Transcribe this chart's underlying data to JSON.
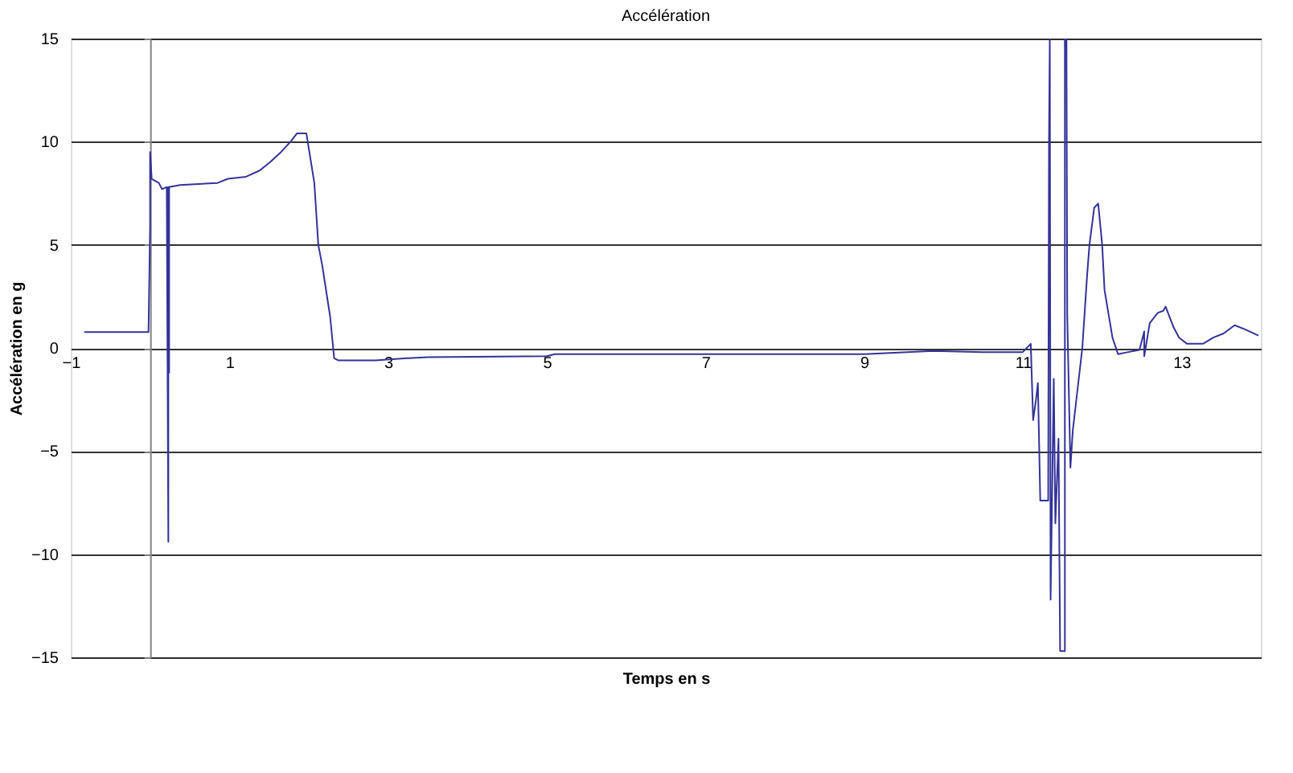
{
  "chart_data": {
    "type": "line",
    "title": "Accélération",
    "xlabel": "Temps en s",
    "ylabel": "Accélération en g",
    "xlim": [
      -1,
      14
    ],
    "xticks": [
      -1,
      1,
      3,
      5,
      7,
      9,
      11,
      13
    ],
    "ylim": [
      -15,
      15
    ],
    "yticks": [
      -15,
      -10,
      -5,
      0,
      5,
      10,
      15
    ],
    "grid": "y",
    "legend": false,
    "marker": "none",
    "line_style": "solid",
    "series": [
      {
        "color": "#333399",
        "x": [
          -0.83,
          -0.02,
          0.0,
          0.0,
          0.02,
          0.11,
          0.15,
          0.21,
          0.23,
          0.23,
          0.24,
          0.24,
          0.38,
          0.85,
          0.98,
          1.21,
          1.38,
          1.51,
          1.65,
          1.77,
          1.85,
          1.97,
          2.07,
          2.12,
          2.17,
          2.27,
          2.32,
          2.37,
          2.84,
          3.24,
          3.5,
          5.0,
          5.1,
          7.0,
          9.0,
          9.87,
          10.5,
          11.0,
          11.1,
          11.13,
          11.17,
          11.19,
          11.22,
          11.32,
          11.33,
          11.34,
          11.35,
          11.39,
          11.41,
          11.45,
          11.47,
          11.53,
          11.53,
          11.55,
          11.56,
          11.6,
          11.63,
          11.75,
          11.81,
          11.84,
          11.9,
          11.95,
          12.0,
          12.03,
          12.13,
          12.2,
          12.33,
          12.47,
          12.53,
          12.53,
          12.6,
          12.7,
          12.77,
          12.8,
          12.9,
          12.97,
          13.07,
          13.27,
          13.4,
          13.53,
          13.67,
          13.8,
          13.97
        ],
        "values": [
          0.77,
          0.77,
          5.9,
          9.5,
          8.2,
          8.0,
          7.7,
          7.8,
          -9.4,
          7.8,
          -1.2,
          7.8,
          7.9,
          8.0,
          8.2,
          8.3,
          8.6,
          9.0,
          9.5,
          10.0,
          10.4,
          10.4,
          8.0,
          5.0,
          4.0,
          1.5,
          -0.5,
          -0.6,
          -0.6,
          -0.5,
          -0.45,
          -0.4,
          -0.3,
          -0.3,
          -0.3,
          -0.15,
          -0.2,
          -0.2,
          0.2,
          -3.5,
          -2.4,
          -1.7,
          -7.4,
          -7.4,
          10,
          15,
          -12.2,
          -1.5,
          -8.5,
          -4.4,
          -14.7,
          -14.7,
          15,
          15,
          1.6,
          -5.8,
          -4.0,
          0,
          3.5,
          5.0,
          6.8,
          7.0,
          5.0,
          2.8,
          0.5,
          -0.3,
          -0.2,
          -0.1,
          0.8,
          -0.4,
          1.2,
          1.7,
          1.8,
          2.0,
          1.0,
          0.5,
          0.2,
          0.2,
          0.5,
          0.7,
          1.1,
          0.9,
          0.6
        ]
      }
    ]
  }
}
